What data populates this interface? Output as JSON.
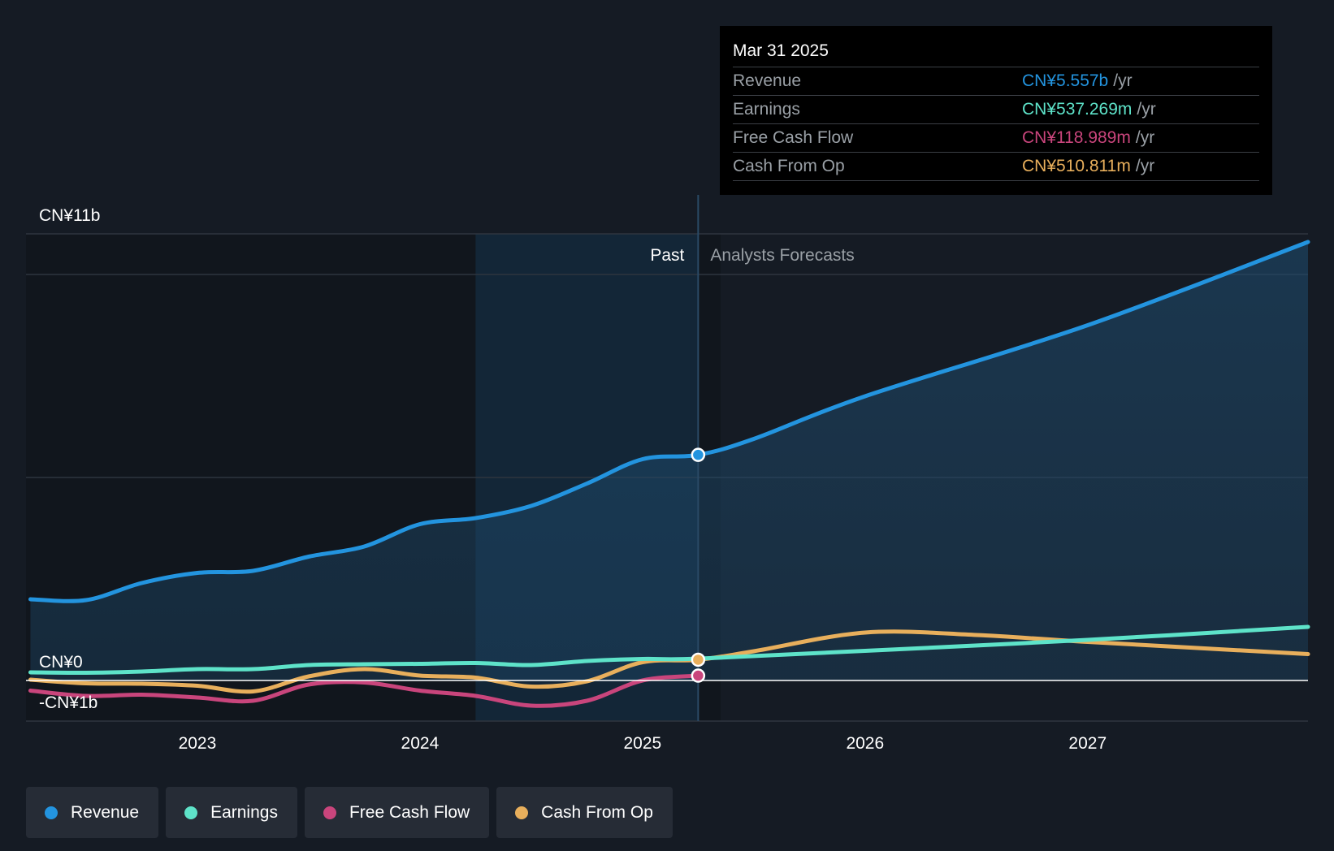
{
  "colors": {
    "revenue": "#2394df",
    "earnings": "#5ee3c9",
    "fcf": "#c9457c",
    "cfo": "#e8af5c",
    "background": "#151b24"
  },
  "tooltip": {
    "date": "Mar 31 2025",
    "rows": [
      {
        "label": "Revenue",
        "value": "CN¥5.557b",
        "unit": "/yr",
        "color": "#2394df"
      },
      {
        "label": "Earnings",
        "value": "CN¥537.269m",
        "unit": "/yr",
        "color": "#5ee3c9"
      },
      {
        "label": "Free Cash Flow",
        "value": "CN¥118.989m",
        "unit": "/yr",
        "color": "#c9457c"
      },
      {
        "label": "Cash From Op",
        "value": "CN¥510.811m",
        "unit": "/yr",
        "color": "#e8af5c"
      }
    ]
  },
  "legend": [
    {
      "label": "Revenue",
      "color": "#2394df"
    },
    {
      "label": "Earnings",
      "color": "#5ee3c9"
    },
    {
      "label": "Free Cash Flow",
      "color": "#c9457c"
    },
    {
      "label": "Cash From Op",
      "color": "#e8af5c"
    }
  ],
  "chart_data": {
    "type": "line",
    "title": "",
    "currency_unit": "CN¥ billions",
    "y_labels": {
      "top": "CN¥11b",
      "zero": "CN¥0",
      "bottom": "-CN¥1b"
    },
    "ylim": [
      -1,
      11
    ],
    "xlim": [
      2022.23,
      2027.99
    ],
    "x_ticks": [
      2023,
      2024,
      2025,
      2026,
      2027
    ],
    "x_tick_labels": [
      "2023",
      "2024",
      "2025",
      "2026",
      "2027"
    ],
    "past_label": "Past",
    "forecast_label": "Analysts Forecasts",
    "past_highlight_start": 2024.25,
    "divider_x": 2025.25,
    "series": [
      {
        "name": "Revenue",
        "key": "revenue",
        "color": "#2394df",
        "fill": true,
        "points": [
          [
            2022.25,
            2.0
          ],
          [
            2022.5,
            1.98
          ],
          [
            2022.75,
            2.4
          ],
          [
            2023.0,
            2.65
          ],
          [
            2023.25,
            2.7
          ],
          [
            2023.5,
            3.05
          ],
          [
            2023.75,
            3.3
          ],
          [
            2024.0,
            3.85
          ],
          [
            2024.25,
            4.0
          ],
          [
            2024.5,
            4.3
          ],
          [
            2024.75,
            4.85
          ],
          [
            2025.0,
            5.45
          ],
          [
            2025.25,
            5.557
          ],
          [
            2025.5,
            5.95
          ],
          [
            2026.0,
            7.0
          ],
          [
            2027.0,
            8.75
          ],
          [
            2027.99,
            10.8
          ]
        ]
      },
      {
        "name": "Earnings",
        "key": "earnings",
        "color": "#5ee3c9",
        "fill": false,
        "points": [
          [
            2022.25,
            0.2
          ],
          [
            2022.5,
            0.19
          ],
          [
            2022.75,
            0.22
          ],
          [
            2023.0,
            0.28
          ],
          [
            2023.25,
            0.28
          ],
          [
            2023.5,
            0.38
          ],
          [
            2023.75,
            0.4
          ],
          [
            2024.0,
            0.41
          ],
          [
            2024.25,
            0.43
          ],
          [
            2024.5,
            0.38
          ],
          [
            2024.75,
            0.48
          ],
          [
            2025.0,
            0.53
          ],
          [
            2025.25,
            0.537
          ],
          [
            2026.0,
            0.73
          ],
          [
            2027.0,
            1.0
          ],
          [
            2027.99,
            1.32
          ]
        ]
      },
      {
        "name": "Free Cash Flow",
        "key": "fcf",
        "color": "#c9457c",
        "fill": false,
        "points": [
          [
            2022.25,
            -0.25
          ],
          [
            2022.5,
            -0.38
          ],
          [
            2022.75,
            -0.35
          ],
          [
            2023.0,
            -0.42
          ],
          [
            2023.25,
            -0.5
          ],
          [
            2023.5,
            -0.1
          ],
          [
            2023.75,
            -0.05
          ],
          [
            2024.0,
            -0.25
          ],
          [
            2024.25,
            -0.38
          ],
          [
            2024.5,
            -0.62
          ],
          [
            2024.75,
            -0.5
          ],
          [
            2025.0,
            0.0
          ],
          [
            2025.25,
            0.119
          ]
        ]
      },
      {
        "name": "Cash From Op",
        "key": "cfo",
        "color": "#e8af5c",
        "fill": false,
        "points": [
          [
            2022.25,
            0.02
          ],
          [
            2022.5,
            -0.07
          ],
          [
            2022.75,
            -0.08
          ],
          [
            2023.0,
            -0.13
          ],
          [
            2023.25,
            -0.27
          ],
          [
            2023.5,
            0.1
          ],
          [
            2023.75,
            0.28
          ],
          [
            2024.0,
            0.12
          ],
          [
            2024.25,
            0.07
          ],
          [
            2024.5,
            -0.15
          ],
          [
            2024.75,
            -0.02
          ],
          [
            2025.0,
            0.45
          ],
          [
            2025.25,
            0.511
          ],
          [
            2025.5,
            0.72
          ],
          [
            2026.0,
            1.18
          ],
          [
            2026.5,
            1.12
          ],
          [
            2027.0,
            0.95
          ],
          [
            2027.99,
            0.65
          ]
        ]
      }
    ]
  }
}
